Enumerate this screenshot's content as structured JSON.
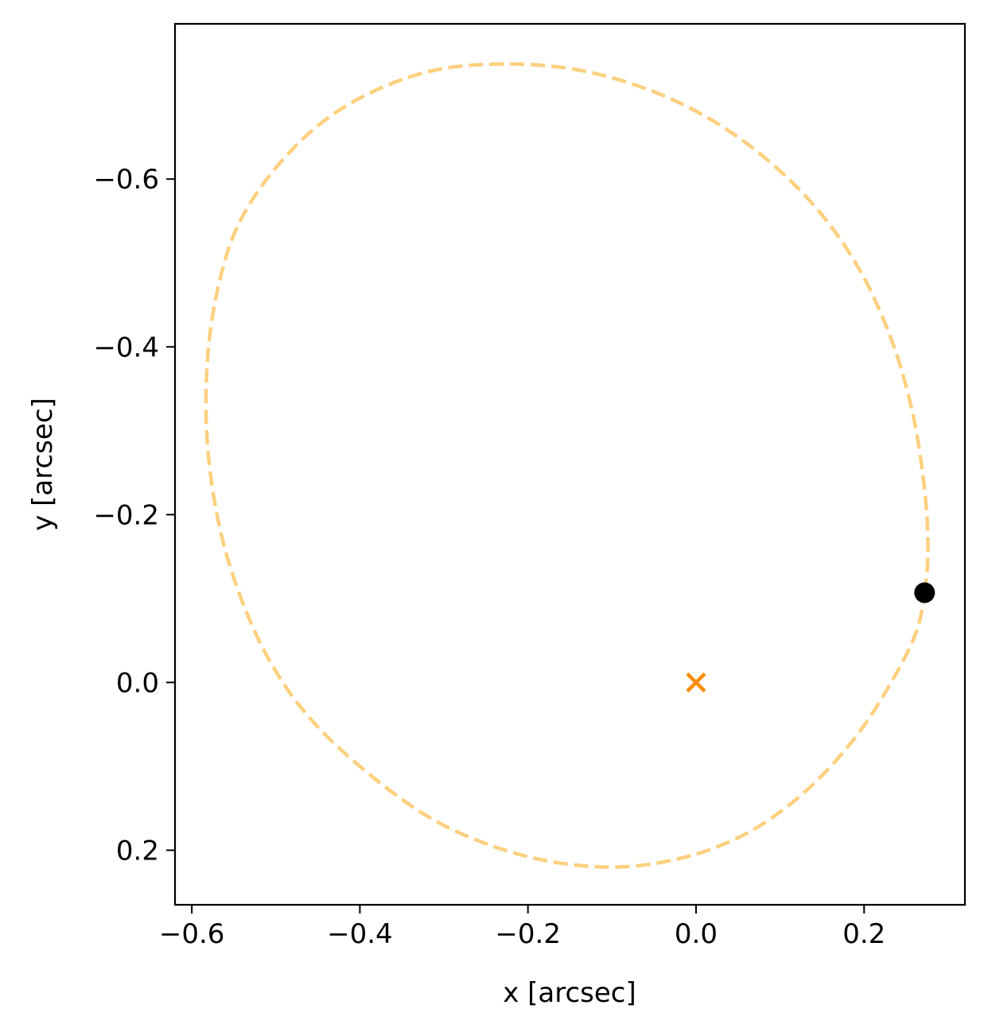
{
  "chart_data": {
    "type": "scatter",
    "xlabel": "x [arcsec]",
    "ylabel": "y [arcsec]",
    "xlim": [
      -0.62,
      0.32
    ],
    "ylim": [
      0.265,
      -0.785
    ],
    "y_inverted": true,
    "grid": false,
    "legend": "none",
    "xticks": [
      {
        "value": -0.6,
        "label": "−0.6"
      },
      {
        "value": -0.4,
        "label": "−0.4"
      },
      {
        "value": -0.2,
        "label": "−0.2"
      },
      {
        "value": 0.0,
        "label": "0.0"
      },
      {
        "value": 0.2,
        "label": "0.2"
      }
    ],
    "yticks": [
      {
        "value": -0.6,
        "label": "−0.6"
      },
      {
        "value": -0.4,
        "label": "−0.4"
      },
      {
        "value": -0.2,
        "label": "−0.2"
      },
      {
        "value": 0.0,
        "label": "0.0"
      },
      {
        "value": 0.2,
        "label": "0.2"
      }
    ],
    "orbit": {
      "style": "dashed",
      "color": "#fdd07f",
      "points": [
        [
          0.272,
          -0.107
        ],
        [
          0.276,
          -0.16
        ],
        [
          0.272,
          -0.23
        ],
        [
          0.258,
          -0.32
        ],
        [
          0.232,
          -0.41
        ],
        [
          0.19,
          -0.5
        ],
        [
          0.13,
          -0.58
        ],
        [
          0.05,
          -0.65
        ],
        [
          -0.04,
          -0.7
        ],
        [
          -0.14,
          -0.73
        ],
        [
          -0.24,
          -0.737
        ],
        [
          -0.33,
          -0.725
        ],
        [
          -0.42,
          -0.685
        ],
        [
          -0.49,
          -0.625
        ],
        [
          -0.545,
          -0.545
        ],
        [
          -0.573,
          -0.45
        ],
        [
          -0.583,
          -0.35
        ],
        [
          -0.578,
          -0.25
        ],
        [
          -0.558,
          -0.15
        ],
        [
          -0.52,
          -0.05
        ],
        [
          -0.47,
          0.03
        ],
        [
          -0.4,
          0.1
        ],
        [
          -0.31,
          0.165
        ],
        [
          -0.21,
          0.205
        ],
        [
          -0.11,
          0.22
        ],
        [
          -0.02,
          0.21
        ],
        [
          0.06,
          0.18
        ],
        [
          0.13,
          0.13
        ],
        [
          0.19,
          0.065
        ],
        [
          0.235,
          -0.005
        ],
        [
          0.262,
          -0.06
        ],
        [
          0.272,
          -0.107
        ]
      ]
    },
    "star": {
      "x": 0.0,
      "y": 0.0,
      "marker": "x",
      "color": "#ff8c00"
    },
    "companion": {
      "x": 0.272,
      "y": -0.107,
      "marker": "o",
      "color": "#000000"
    }
  }
}
